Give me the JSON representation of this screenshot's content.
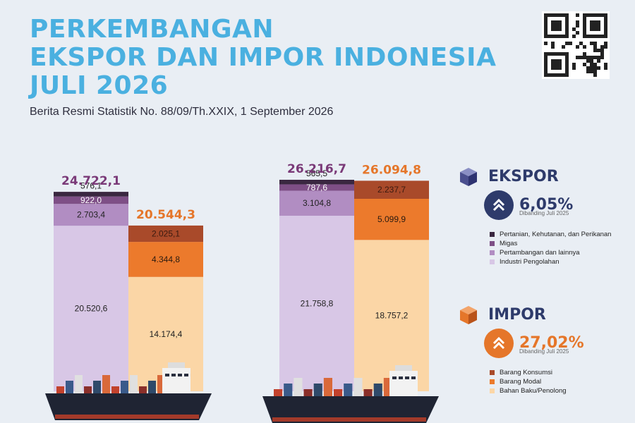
{
  "header": {
    "title_line1": "PERKEMBANGAN",
    "title_line2": "EKSPOR DAN IMPOR INDONESIA",
    "title_line3": "JULI 2026",
    "subtitle": "Berita Resmi Statistik No. 88/09/Th.XXIX, 1 September 2026"
  },
  "colors": {
    "title": "#4ab0e0",
    "ekspor_total": "#7a3a78",
    "impor_total": "#e5762a",
    "ekspor_badge": "#2e3b6b",
    "impor_badge": "#e5762a"
  },
  "ekspor_legend": {
    "title": "EKSPOR",
    "change": "6,05%",
    "note": "Dibanding Juli 2025",
    "items": [
      {
        "label": "Pertanian, Kehutanan, dan Perikanan",
        "color": "#3a2740"
      },
      {
        "label": "Migas",
        "color": "#7e4f86"
      },
      {
        "label": "Pertambangan dan lainnya",
        "color": "#b18dc2"
      },
      {
        "label": "Industri Pengolahan",
        "color": "#d8c7e6"
      }
    ]
  },
  "impor_legend": {
    "title": "IMPOR",
    "change": "27,02%",
    "note": "Dibanding Juli 2025",
    "items": [
      {
        "label": "Barang Konsumsi",
        "color": "#a94a2a"
      },
      {
        "label": "Barang Modal",
        "color": "#ec7a2c"
      },
      {
        "label": "Bahan Baku/Penolong",
        "color": "#fbd6a6"
      }
    ]
  },
  "chart_data": {
    "type": "bar",
    "stacked": true,
    "groups": [
      {
        "bars": [
          {
            "name": "Ekspor",
            "total": 24722.1,
            "total_label": "24.722,1",
            "segments": [
              {
                "series": "Industri Pengolahan",
                "value": 20520.6,
                "label": "20.520,6"
              },
              {
                "series": "Pertambangan dan lainnya",
                "value": 2703.4,
                "label": "2.703,4"
              },
              {
                "series": "Migas",
                "value": 922.0,
                "label": "922,0"
              },
              {
                "series": "Pertanian, Kehutanan, dan Perikanan",
                "value": 576.1,
                "label": "576,1"
              }
            ]
          },
          {
            "name": "Impor",
            "total": 20544.3,
            "total_label": "20.544,3",
            "segments": [
              {
                "series": "Bahan Baku/Penolong",
                "value": 14174.4,
                "label": "14.174,4"
              },
              {
                "series": "Barang Modal",
                "value": 4344.8,
                "label": "4.344,8"
              },
              {
                "series": "Barang Konsumsi",
                "value": 2025.1,
                "label": "2.025,1"
              }
            ]
          }
        ]
      },
      {
        "bars": [
          {
            "name": "Ekspor",
            "total": 26216.7,
            "total_label": "26.216,7",
            "segments": [
              {
                "series": "Industri Pengolahan",
                "value": 21758.8,
                "label": "21.758,8"
              },
              {
                "series": "Pertambangan dan lainnya",
                "value": 3104.8,
                "label": "3.104,8"
              },
              {
                "series": "Migas",
                "value": 787.6,
                "label": "787,6"
              },
              {
                "series": "Pertanian, Kehutanan, dan Perikanan",
                "value": 565.5,
                "label": "565,5"
              }
            ]
          },
          {
            "name": "Impor",
            "total": 26094.8,
            "total_label": "26.094,8",
            "segments": [
              {
                "series": "Bahan Baku/Penolong",
                "value": 18757.2,
                "label": "18.757,2"
              },
              {
                "series": "Barang Modal",
                "value": 5099.9,
                "label": "5.099,9"
              },
              {
                "series": "Barang Konsumsi",
                "value": 2237.7,
                "label": "2.237,7"
              }
            ]
          }
        ]
      }
    ],
    "series_colors": {
      "Industri Pengolahan": "#d8c7e6",
      "Pertambangan dan lainnya": "#b18dc2",
      "Migas": "#7e4f86",
      "Pertanian, Kehutanan, dan Perikanan": "#3a2740",
      "Bahan Baku/Penolong": "#fbd6a6",
      "Barang Modal": "#ec7a2c",
      "Barang Konsumsi": "#a94a2a"
    },
    "title": "",
    "xlabel": "",
    "ylabel": "",
    "grid": false
  }
}
